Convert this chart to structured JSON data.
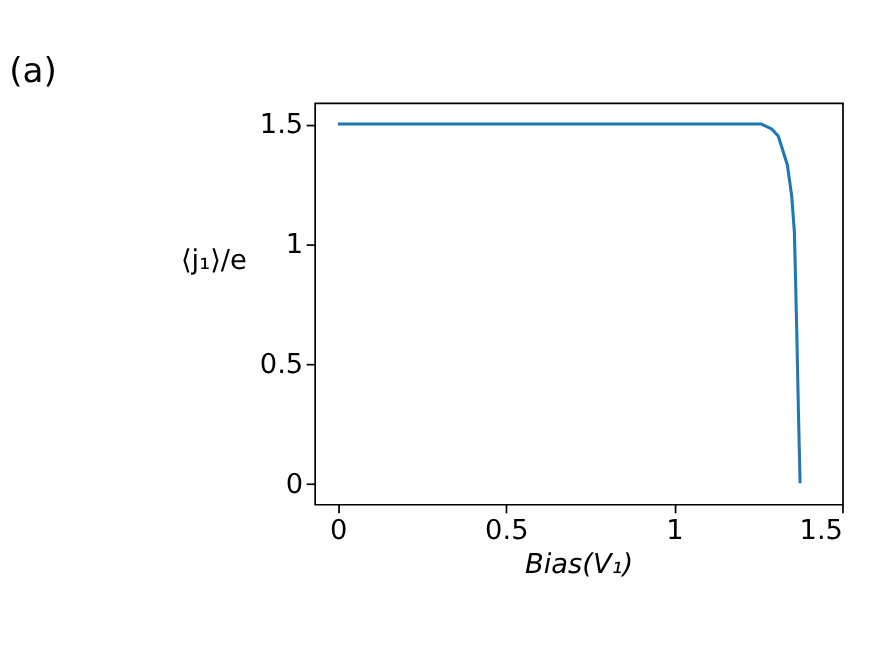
{
  "chart_data": {
    "type": "line",
    "title": "(a)",
    "xlabel": "Bias(V₁)",
    "ylabel": "⟨j₁⟩/e",
    "x": [
      0,
      0.5,
      1.0,
      1.2,
      1.26,
      1.29,
      1.31,
      1.337,
      1.35,
      1.358,
      1.365,
      1.37,
      1.375
    ],
    "series": [
      {
        "color": "#1f77b4",
        "values": [
          1.5,
          1.5,
          1.5,
          1.5,
          1.5,
          1.48,
          1.45,
          1.33,
          1.2,
          1.05,
          0.64,
          0.3,
          0
        ]
      }
    ],
    "xlim": [
      -0.07,
      1.5
    ],
    "ylim": [
      -0.086,
      1.59
    ],
    "xticks": [
      0,
      0.5,
      1,
      1.5
    ],
    "yticks": [
      0,
      0.5,
      1,
      1.5
    ],
    "grid": false,
    "marker": "none",
    "line_style": "solid"
  }
}
